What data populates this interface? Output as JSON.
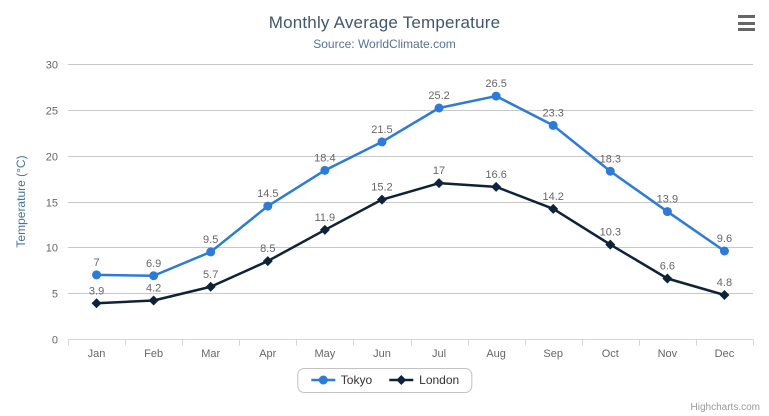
{
  "chart": {
    "title": "Monthly Average Temperature",
    "subtitle": "Source: WorldClimate.com",
    "credits": "Highcharts.com",
    "context_menu_icon": "hamburger-icon"
  },
  "chart_data": {
    "type": "line",
    "title": "Monthly Average Temperature",
    "subtitle": "Source: WorldClimate.com",
    "categories": [
      "Jan",
      "Feb",
      "Mar",
      "Apr",
      "May",
      "Jun",
      "Jul",
      "Aug",
      "Sep",
      "Oct",
      "Nov",
      "Dec"
    ],
    "series": [
      {
        "name": "Tokyo",
        "color": "#2d7bd8",
        "marker": "circle",
        "values": [
          7,
          6.9,
          9.5,
          14.5,
          18.4,
          21.5,
          25.2,
          26.5,
          23.3,
          18.3,
          13.9,
          9.6
        ]
      },
      {
        "name": "London",
        "color": "#0d233a",
        "marker": "diamond",
        "values": [
          3.9,
          4.2,
          5.7,
          8.5,
          11.9,
          15.2,
          17,
          16.6,
          14.2,
          10.3,
          6.6,
          4.8
        ]
      }
    ],
    "xlabel": "",
    "ylabel": "Temperature (°C)",
    "ylim": [
      0,
      30
    ],
    "ytick_interval": 5,
    "yticks": [
      0,
      5,
      10,
      15,
      20,
      25,
      30
    ],
    "grid": true,
    "data_labels": true,
    "legend_position": "bottom-center",
    "colors": {
      "grid_line": "#c8c8c8",
      "axis_line": "#ccd6eb",
      "axis_label": "#666666",
      "axis_title": "#4572a7",
      "data_label": "#666666",
      "title": "#3e576f",
      "subtitle": "#567294"
    }
  }
}
